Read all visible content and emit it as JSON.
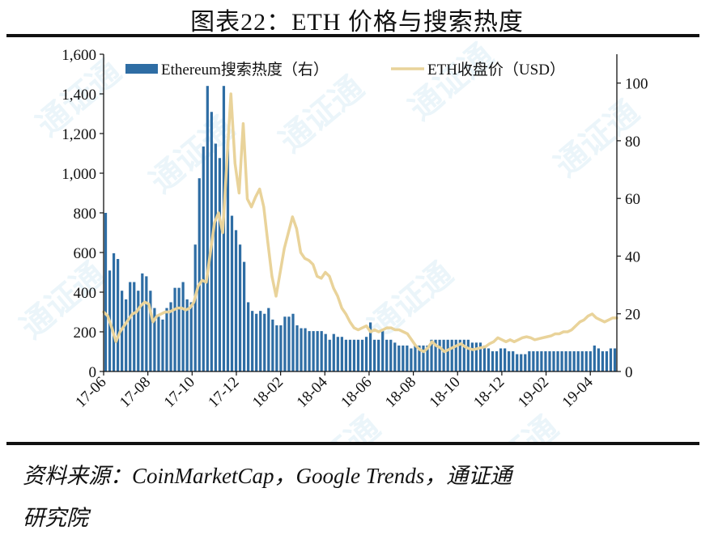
{
  "figure": {
    "title": "图表22：ETH 价格与搜索热度",
    "source_line1": "资料来源：CoinMarketCap，Google Trends，通证通",
    "source_line2": "研究院",
    "watermark": "通证通"
  },
  "chart_data": {
    "type": "bar+line",
    "legend": {
      "placement": "top",
      "bar_label": "Ethereum搜索热度（右）",
      "line_label": "ETH收盘价（USD）"
    },
    "x_ticks": [
      "17-06",
      "17-08",
      "17-10",
      "17-12",
      "18-02",
      "18-04",
      "18-06",
      "18-08",
      "18-10",
      "18-12",
      "19-02",
      "19-04"
    ],
    "x_range": [
      0,
      125
    ],
    "left_axis": {
      "ylim": [
        0,
        1600
      ],
      "ticks": [
        "0",
        "200",
        "400",
        "600",
        "800",
        "1,000",
        "1,200",
        "1,400",
        "1,600"
      ]
    },
    "right_axis": {
      "ylim": [
        0,
        110
      ],
      "ticks": [
        "0",
        "20",
        "40",
        "60",
        "80",
        "100"
      ]
    },
    "bar_color": "#2e6da4",
    "line_color": "#e9d39a",
    "series": [
      {
        "name": "Ethereum搜索热度（右）",
        "kind": "bar",
        "axis": "right",
        "values": [
          55,
          35,
          41,
          39,
          28,
          25,
          31,
          31,
          28,
          34,
          33,
          28,
          22,
          19,
          18,
          22,
          24,
          29,
          29,
          31,
          25,
          24,
          44,
          67,
          78,
          99,
          90,
          79,
          74,
          99,
          79,
          54,
          49,
          44,
          38,
          24,
          21,
          20,
          21,
          20,
          22,
          18,
          16,
          16,
          19,
          19,
          20,
          16,
          15,
          15,
          14,
          14,
          14,
          14,
          13,
          11,
          13,
          12,
          12,
          11,
          11,
          11,
          11,
          11,
          12,
          17,
          11,
          11,
          14,
          11,
          11,
          10,
          9,
          9,
          9,
          8,
          9,
          9,
          9,
          9,
          11,
          11,
          11,
          11,
          11,
          11,
          11,
          11,
          11,
          11,
          10,
          10,
          10,
          9,
          8,
          7,
          7,
          8,
          8,
          7,
          7,
          6,
          6,
          6,
          7,
          7,
          7,
          7,
          7,
          7,
          7,
          7,
          7,
          7,
          7,
          7,
          7,
          7,
          7,
          7,
          9,
          8,
          7,
          7,
          8,
          8
        ]
      },
      {
        "name": "ETH收盘价（USD）",
        "kind": "line",
        "axis": "left",
        "values": [
          300,
          280,
          220,
          150,
          200,
          230,
          260,
          290,
          300,
          330,
          350,
          340,
          250,
          280,
          290,
          300,
          300,
          310,
          320,
          320,
          310,
          320,
          350,
          430,
          460,
          450,
          600,
          750,
          800,
          700,
          1050,
          1400,
          1050,
          900,
          1250,
          870,
          830,
          880,
          920,
          830,
          650,
          480,
          380,
          500,
          620,
          700,
          780,
          720,
          600,
          570,
          560,
          540,
          480,
          470,
          500,
          480,
          420,
          380,
          320,
          290,
          250,
          220,
          210,
          220,
          230,
          200,
          210,
          200,
          210,
          220,
          220,
          210,
          210,
          200,
          190,
          160,
          130,
          110,
          100,
          120,
          150,
          130,
          120,
          100,
          110,
          120,
          130,
          140,
          125,
          115,
          110,
          115,
          120,
          125,
          140,
          150,
          170,
          160,
          150,
          160,
          150,
          160,
          170,
          175,
          170,
          160,
          165,
          170,
          175,
          180,
          190,
          190,
          200,
          200,
          210,
          230,
          250,
          260,
          280,
          290,
          270,
          260,
          250,
          260,
          270,
          270
        ]
      }
    ]
  }
}
